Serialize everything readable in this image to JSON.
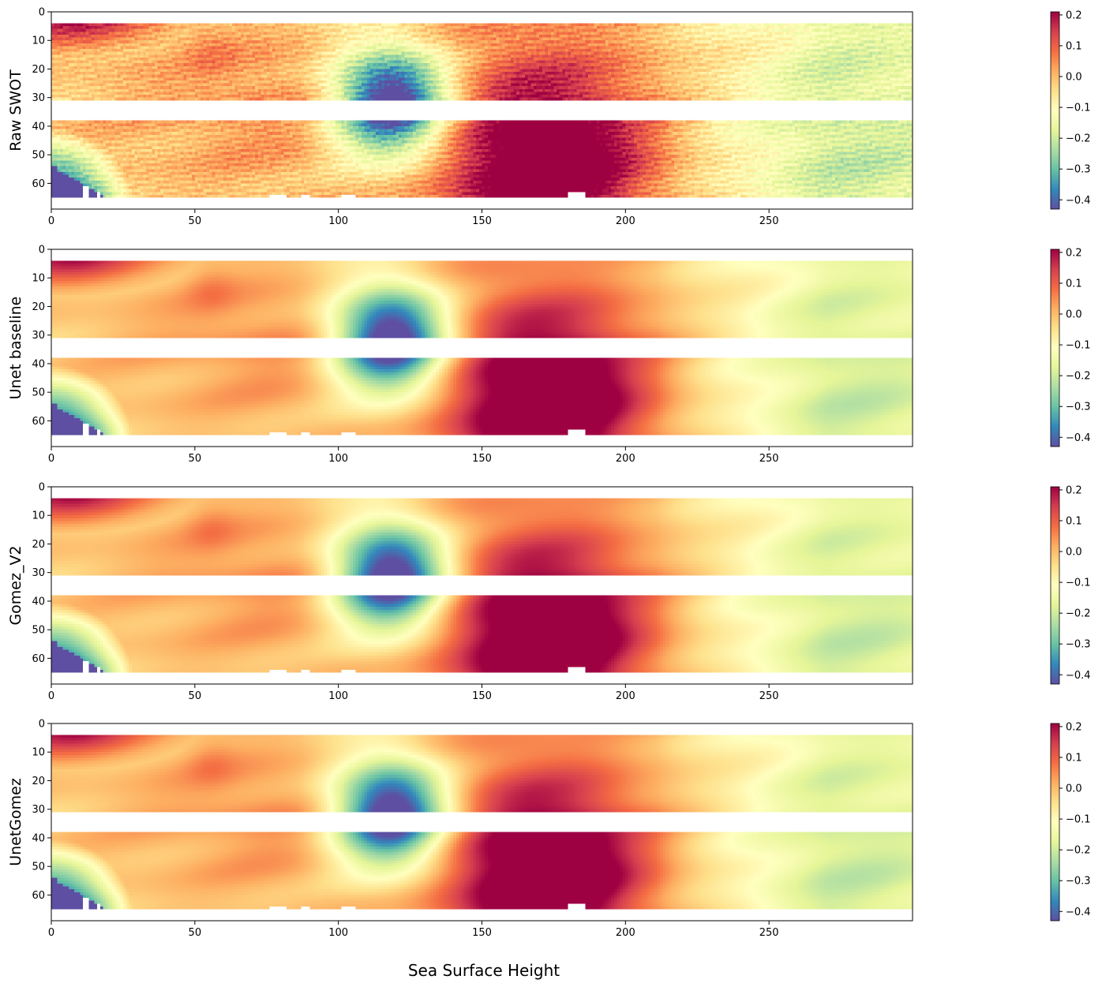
{
  "figure": {
    "xlabel": "Sea Surface Height"
  },
  "chart_data": [
    {
      "type": "heatmap",
      "ylabel": "Raw SWOT",
      "xlim": [
        0,
        300
      ],
      "ylim": [
        69,
        0
      ],
      "x_ticks": [
        "0",
        "50",
        "100",
        "150",
        "200",
        "250"
      ],
      "y_ticks": [
        "0",
        "10",
        "20",
        "30",
        "40",
        "50",
        "60"
      ],
      "colorbar": {
        "range": [
          -0.43,
          0.21
        ],
        "ticks": [
          "0.2",
          "0.1",
          "0.0",
          "−0.1",
          "−0.2",
          "−0.3",
          "−0.4"
        ],
        "cmap": "Spectral_r"
      },
      "colors": {
        "min": "#5e4fa2",
        "max": "#9e0142"
      }
    },
    {
      "type": "heatmap",
      "ylabel": "Unet baseline",
      "xlim": [
        0,
        300
      ],
      "ylim": [
        69,
        0
      ],
      "x_ticks": [
        "0",
        "50",
        "100",
        "150",
        "200",
        "250"
      ],
      "y_ticks": [
        "0",
        "10",
        "20",
        "30",
        "40",
        "50",
        "60"
      ],
      "colorbar": {
        "range": [
          -0.43,
          0.21
        ],
        "ticks": [
          "0.2",
          "0.1",
          "0.0",
          "−0.1",
          "−0.2",
          "−0.3",
          "−0.4"
        ],
        "cmap": "Spectral_r"
      },
      "colors": {
        "min": "#5e4fa2",
        "max": "#9e0142"
      }
    },
    {
      "type": "heatmap",
      "ylabel": "Gomez_V2",
      "xlim": [
        0,
        300
      ],
      "ylim": [
        69,
        0
      ],
      "x_ticks": [
        "0",
        "50",
        "100",
        "150",
        "200",
        "250"
      ],
      "y_ticks": [
        "0",
        "10",
        "20",
        "30",
        "40",
        "50",
        "60"
      ],
      "colorbar": {
        "range": [
          -0.43,
          0.21
        ],
        "ticks": [
          "0.2",
          "0.1",
          "0.0",
          "−0.1",
          "−0.2",
          "−0.3",
          "−0.4"
        ],
        "cmap": "Spectral_r"
      },
      "colors": {
        "min": "#5e4fa2",
        "max": "#9e0142"
      }
    },
    {
      "type": "heatmap",
      "ylabel": "UnetGomez",
      "xlim": [
        0,
        300
      ],
      "ylim": [
        69,
        0
      ],
      "x_ticks": [
        "0",
        "50",
        "100",
        "150",
        "200",
        "250"
      ],
      "y_ticks": [
        "0",
        "10",
        "20",
        "30",
        "40",
        "50",
        "60"
      ],
      "colorbar": {
        "range": [
          -0.43,
          0.21
        ],
        "ticks": [
          "0.2",
          "0.1",
          "0.0",
          "−0.1",
          "−0.2",
          "−0.3",
          "−0.4"
        ],
        "cmap": "Spectral_r"
      },
      "colors": {
        "min": "#5e4fa2",
        "max": "#9e0142"
      }
    }
  ]
}
